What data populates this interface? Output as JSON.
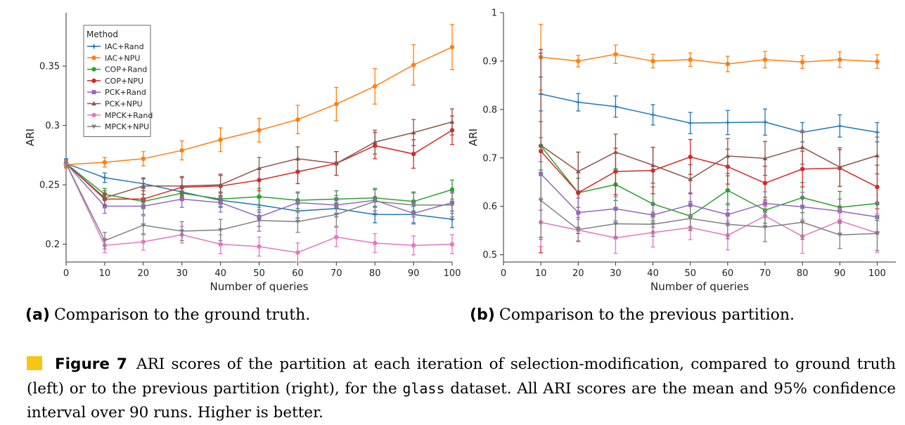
{
  "colors": {
    "IAC+Rand": "#1f77b4",
    "IAC+NPU": "#ff7f0e",
    "COP+Rand": "#2ca02c",
    "COP+NPU": "#d62728",
    "PCK+Rand": "#9467bd",
    "PCK+NPU": "#8c564b",
    "MPCK+Rand": "#e377c2",
    "MPCK+NPU": "#7f7f7f",
    "caption_marker": "#f5c518"
  },
  "chart_data": [
    {
      "type": "line",
      "xlabel": "Number of queries",
      "ylabel": "ARI",
      "xlim": [
        0,
        100
      ],
      "ylim": [
        0.185,
        0.395
      ],
      "xticks": [
        0,
        10,
        20,
        30,
        40,
        50,
        60,
        70,
        80,
        90,
        100
      ],
      "yticks": [
        0.2,
        0.25,
        0.3,
        0.35
      ],
      "ytick_labels": [
        "0.2",
        "0.25",
        "0.3",
        "0.35"
      ],
      "legend": {
        "title": "Method",
        "placement": "upper-left"
      },
      "x": [
        0,
        10,
        20,
        30,
        40,
        50,
        60,
        70,
        80,
        90,
        100
      ],
      "series": [
        {
          "name": "IAC+Rand",
          "marker": "plus",
          "values": [
            0.268,
            0.256,
            0.251,
            0.244,
            0.237,
            0.233,
            0.228,
            0.23,
            0.225,
            0.225,
            0.221
          ],
          "err": [
            0.004,
            0.004,
            0.004,
            0.005,
            0.006,
            0.006,
            0.006,
            0.007,
            0.007,
            0.007,
            0.007
          ]
        },
        {
          "name": "IAC+NPU",
          "marker": "circle",
          "values": [
            0.267,
            0.269,
            0.272,
            0.279,
            0.288,
            0.296,
            0.305,
            0.318,
            0.333,
            0.351,
            0.366
          ],
          "err": [
            0.003,
            0.004,
            0.006,
            0.008,
            0.01,
            0.01,
            0.012,
            0.014,
            0.015,
            0.017,
            0.019
          ]
        },
        {
          "name": "COP+Rand",
          "marker": "circle",
          "values": [
            0.268,
            0.242,
            0.236,
            0.243,
            0.238,
            0.24,
            0.237,
            0.238,
            0.239,
            0.236,
            0.246
          ],
          "err": [
            0.003,
            0.005,
            0.006,
            0.006,
            0.006,
            0.007,
            0.007,
            0.007,
            0.008,
            0.008,
            0.008
          ]
        },
        {
          "name": "COP+NPU",
          "marker": "circle",
          "values": [
            0.268,
            0.238,
            0.238,
            0.248,
            0.249,
            0.254,
            0.261,
            0.268,
            0.283,
            0.276,
            0.296
          ],
          "err": [
            0.003,
            0.005,
            0.007,
            0.008,
            0.009,
            0.009,
            0.01,
            0.01,
            0.011,
            0.012,
            0.012
          ]
        },
        {
          "name": "PCK+Rand",
          "marker": "square",
          "values": [
            0.268,
            0.232,
            0.232,
            0.238,
            0.235,
            0.223,
            0.235,
            0.233,
            0.237,
            0.226,
            0.235
          ],
          "err": [
            0.003,
            0.006,
            0.007,
            0.007,
            0.008,
            0.008,
            0.008,
            0.008,
            0.009,
            0.009,
            0.009
          ]
        },
        {
          "name": "PCK+NPU",
          "marker": "tri-up",
          "values": [
            0.268,
            0.239,
            0.249,
            0.249,
            0.25,
            0.264,
            0.272,
            0.268,
            0.286,
            0.294,
            0.303
          ],
          "err": [
            0.003,
            0.006,
            0.007,
            0.008,
            0.009,
            0.009,
            0.01,
            0.01,
            0.01,
            0.011,
            0.011
          ]
        },
        {
          "name": "MPCK+Rand",
          "marker": "circle",
          "values": [
            0.268,
            0.199,
            0.202,
            0.208,
            0.2,
            0.198,
            0.193,
            0.206,
            0.201,
            0.199,
            0.2
          ],
          "err": [
            0.003,
            0.006,
            0.007,
            0.007,
            0.008,
            0.008,
            0.008,
            0.008,
            0.008,
            0.008,
            0.008
          ]
        },
        {
          "name": "MPCK+NPU",
          "marker": "tri-down",
          "values": [
            0.268,
            0.203,
            0.216,
            0.211,
            0.212,
            0.22,
            0.219,
            0.225,
            0.236,
            0.233,
            0.233
          ],
          "err": [
            0.003,
            0.007,
            0.008,
            0.008,
            0.009,
            0.009,
            0.009,
            0.01,
            0.01,
            0.01,
            0.01
          ]
        }
      ]
    },
    {
      "type": "line",
      "xlabel": "Number of queries",
      "ylabel": "ARI",
      "xlim": [
        0,
        105
      ],
      "ylim": [
        0.485,
        1.0
      ],
      "xticks": [
        0,
        10,
        20,
        30,
        40,
        50,
        60,
        70,
        80,
        90,
        100
      ],
      "yticks": [
        0.5,
        0.6,
        0.7,
        0.8,
        0.9,
        1.0
      ],
      "ytick_labels": [
        "0.5",
        "0.6",
        "0.7",
        "0.8",
        "0.9",
        "1"
      ],
      "x": [
        10,
        20,
        30,
        40,
        50,
        60,
        70,
        80,
        90,
        100
      ],
      "series": [
        {
          "name": "IAC+Rand",
          "marker": "plus",
          "values": [
            0.832,
            0.815,
            0.806,
            0.789,
            0.772,
            0.773,
            0.774,
            0.753,
            0.766,
            0.753
          ],
          "err": [
            0.035,
            0.018,
            0.022,
            0.021,
            0.022,
            0.025,
            0.027,
            0.02,
            0.023,
            0.02
          ]
        },
        {
          "name": "IAC+NPU",
          "marker": "circle",
          "values": [
            0.908,
            0.9,
            0.914,
            0.9,
            0.903,
            0.894,
            0.903,
            0.898,
            0.903,
            0.899
          ],
          "err": [
            0.068,
            0.012,
            0.019,
            0.014,
            0.014,
            0.016,
            0.017,
            0.013,
            0.016,
            0.014
          ]
        },
        {
          "name": "COP+Rand",
          "marker": "circle",
          "values": [
            0.725,
            0.628,
            0.645,
            0.605,
            0.58,
            0.633,
            0.592,
            0.618,
            0.598,
            0.606
          ],
          "err": [
            0.05,
            0.03,
            0.033,
            0.035,
            0.03,
            0.03,
            0.027,
            0.031,
            0.033,
            0.035
          ]
        },
        {
          "name": "COP+NPU",
          "marker": "circle",
          "values": [
            0.714,
            0.628,
            0.672,
            0.674,
            0.702,
            0.682,
            0.648,
            0.677,
            0.679,
            0.64
          ],
          "err": [
            0.21,
            0.084,
            0.048,
            0.048,
            0.036,
            0.036,
            0.035,
            0.037,
            0.038,
            0.045
          ]
        },
        {
          "name": "PCK+Rand",
          "marker": "square",
          "values": [
            0.667,
            0.587,
            0.595,
            0.582,
            0.603,
            0.583,
            0.606,
            0.599,
            0.59,
            0.578
          ],
          "err": [
            0.075,
            0.03,
            0.025,
            0.025,
            0.025,
            0.023,
            0.024,
            0.03,
            0.025,
            0.03
          ]
        },
        {
          "name": "PCK+NPU",
          "marker": "tri-up",
          "values": [
            0.726,
            0.672,
            0.712,
            0.685,
            0.656,
            0.704,
            0.699,
            0.722,
            0.681,
            0.705
          ],
          "err": [
            0.19,
            0.04,
            0.037,
            0.037,
            0.03,
            0.036,
            0.035,
            0.035,
            0.04,
            0.038
          ]
        },
        {
          "name": "MPCK+Rand",
          "marker": "circle",
          "values": [
            0.567,
            0.551,
            0.535,
            0.546,
            0.556,
            0.54,
            0.58,
            0.538,
            0.57,
            0.545
          ],
          "err": [
            0.05,
            0.022,
            0.032,
            0.03,
            0.025,
            0.03,
            0.02,
            0.035,
            0.025,
            0.04
          ]
        },
        {
          "name": "MPCK+NPU",
          "marker": "tri-down",
          "values": [
            0.612,
            0.552,
            0.564,
            0.563,
            0.575,
            0.563,
            0.557,
            0.567,
            0.541,
            0.544
          ],
          "err": [
            0.08,
            0.025,
            0.028,
            0.025,
            0.025,
            0.03,
            0.03,
            0.035,
            0.028,
            0.035
          ]
        }
      ]
    }
  ],
  "captions": {
    "a_label": "(a)",
    "a_text": "Comparison to the ground truth.",
    "b_label": "(b)",
    "b_text": "Comparison to the previous partition.",
    "figure_label": "Figure 7",
    "figure_text_1": " ARI scores of the partition at each iteration of selection-modification, compared to ground truth (left) or to the previous partition (right), for the ",
    "figure_code": "glass",
    "figure_text_2": " dataset. All ARI scores are the mean and 95% confidence interval over 90 runs. Higher is better."
  }
}
